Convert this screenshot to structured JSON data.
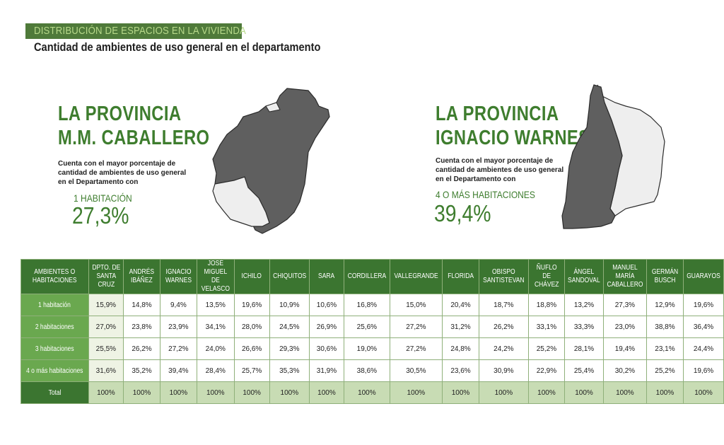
{
  "header": {
    "title": "DISTRIBUCIÓN DE ESPACIOS EN LA VIVIENDA",
    "subtitle": "Cantidad de ambientes de uso general en el departamento"
  },
  "provinces": [
    {
      "title_line1": "LA PROVINCIA",
      "title_line2": "M.M. CABALLERO",
      "description": "Cuenta con el mayor porcentaje de cantidad de ambientes de uso general en el Departamento con",
      "metric_label": "1 HABITACIÓN",
      "metric_value": "27,3%"
    },
    {
      "title_line1": "LA PROVINCIA",
      "title_line2": "IGNACIO WARNES",
      "description": "Cuenta con el mayor porcentaje de cantidad de ambientes de uso general en el Departamento con",
      "metric_label": "4 O MÁS HABITACIONES",
      "metric_value": "39,4%"
    }
  ],
  "table": {
    "corner_header": "AMBIENTES O HABITACIONES",
    "columns": [
      "DPTO. DE SANTA CRUZ",
      "ANDRÉS IBÁÑEZ",
      "IGNACIO WARNES",
      "JOSÉ MIGUEL DE VELASCO",
      "ICHILO",
      "CHIQUITOS",
      "SARA",
      "CORDILLERA",
      "VALLEGRANDE",
      "FLORIDA",
      "OBISPO SANTISTEVAN",
      "ÑUFLO DE CHÁVEZ",
      "ÁNGEL SANDOVAL",
      "MANUEL MARÍA CABALLERO",
      "GERMÁN BUSCH",
      "GUARAYOS"
    ],
    "rows": [
      {
        "label": "1 habitación",
        "values": [
          "15,9%",
          "14,8%",
          "9,4%",
          "13,5%",
          "19,6%",
          "10,9%",
          "10,6%",
          "16,8%",
          "15,0%",
          "20,4%",
          "18,7%",
          "18,8%",
          "13,2%",
          "27,3%",
          "12,9%",
          "19,6%"
        ]
      },
      {
        "label": "2 habitaciones",
        "values": [
          "27,0%",
          "23,8%",
          "23,9%",
          "34,1%",
          "28,0%",
          "24,5%",
          "26,9%",
          "25,6%",
          "27,2%",
          "31,2%",
          "26,2%",
          "33,1%",
          "33,3%",
          "23,0%",
          "38,8%",
          "36,4%"
        ]
      },
      {
        "label": "3 habitaciones",
        "values": [
          "25,5%",
          "26,2%",
          "27,2%",
          "24,0%",
          "26,6%",
          "29,3%",
          "30,6%",
          "19,0%",
          "27,2%",
          "24,8%",
          "24,2%",
          "25,2%",
          "28,1%",
          "19,4%",
          "23,1%",
          "24,4%"
        ]
      },
      {
        "label": "4 o más habitaciones",
        "values": [
          "31,6%",
          "35,2%",
          "39,4%",
          "28,4%",
          "25,7%",
          "35,3%",
          "31,9%",
          "38,6%",
          "30,5%",
          "23,6%",
          "30,9%",
          "22,9%",
          "25,4%",
          "30,2%",
          "25,2%",
          "19,6%"
        ]
      },
      {
        "label": "Total",
        "values": [
          "100%",
          "100%",
          "100%",
          "100%",
          "100%",
          "100%",
          "100%",
          "100%",
          "100%",
          "100%",
          "100%",
          "100%",
          "100%",
          "100%",
          "100%",
          "100%"
        ]
      }
    ]
  },
  "colors": {
    "brand_green": "#3e7d2e",
    "header_band": "#4f7a3a",
    "map_dark": "#5f5f5f",
    "map_light": "#eeeeee"
  }
}
